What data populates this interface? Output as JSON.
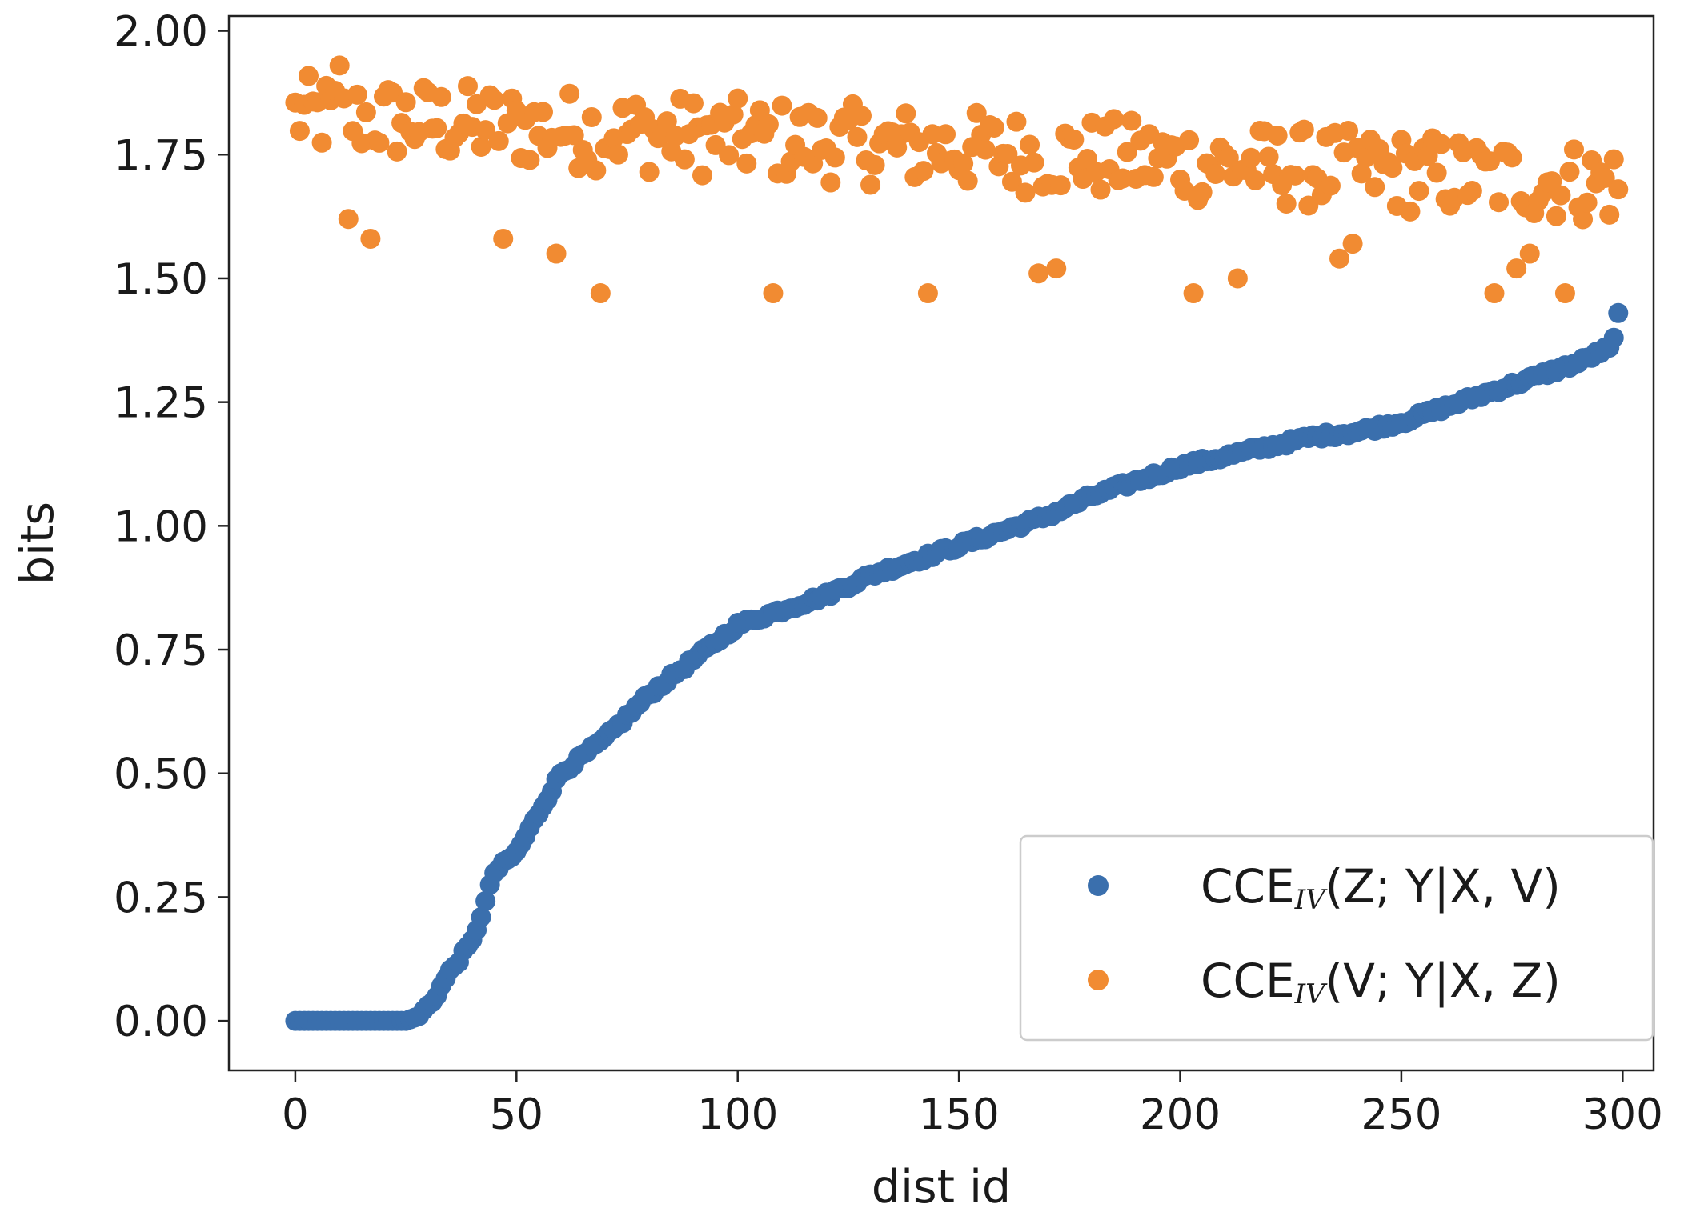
{
  "chart_data": {
    "type": "scatter",
    "title": "",
    "xlabel": "dist id",
    "ylabel": "bits",
    "xlim": [
      -15,
      307
    ],
    "ylim": [
      -0.1,
      2.03
    ],
    "grid": false,
    "legend_position": "bottom-right",
    "xticks": [
      0,
      50,
      100,
      150,
      200,
      250,
      300
    ],
    "yticks": [
      0.0,
      0.25,
      0.5,
      0.75,
      1.0,
      1.25,
      1.5,
      1.75,
      2.0
    ],
    "xtick_labels": [
      "0",
      "50",
      "100",
      "150",
      "200",
      "250",
      "300"
    ],
    "ytick_labels": [
      "0.00",
      "0.25",
      "0.50",
      "0.75",
      "1.00",
      "1.25",
      "1.50",
      "1.75",
      "2.00"
    ],
    "series": [
      {
        "name": "CCE_IV(Z;Y|X,V)",
        "legend_main": "CCE",
        "legend_sub": "IV",
        "legend_rest": "(Z; Y|X, V)",
        "color": "#3a6fad",
        "curve_description": "sorted ascending; 0 to ~dist 27, rises through ~0.3 at 45, 0.8 at 100, 1.0 at 170, 1.2 at 250, up to 1.43 at 299",
        "knots_x": [
          0,
          25,
          28,
          31,
          35,
          40,
          43,
          45,
          50,
          55,
          60,
          70,
          80,
          90,
          100,
          110,
          120,
          130,
          140,
          150,
          160,
          170,
          180,
          190,
          200,
          210,
          220,
          230,
          240,
          250,
          260,
          270,
          280,
          290,
          297,
          298,
          299
        ],
        "knots_y": [
          0.0,
          0.0,
          0.01,
          0.04,
          0.1,
          0.16,
          0.24,
          0.3,
          0.34,
          0.42,
          0.5,
          0.57,
          0.66,
          0.73,
          0.8,
          0.83,
          0.86,
          0.9,
          0.93,
          0.96,
          0.99,
          1.02,
          1.06,
          1.09,
          1.12,
          1.14,
          1.16,
          1.18,
          1.19,
          1.21,
          1.24,
          1.27,
          1.3,
          1.33,
          1.36,
          1.38,
          1.43
        ]
      },
      {
        "name": "CCE_IV(V;Y|X,Z)",
        "legend_main": "CCE",
        "legend_sub": "IV",
        "legend_rest": "(V; Y|X, Z)",
        "color": "#f18b32",
        "curve_description": "noisy scatter between ~1.46 and ~1.94, mean drifting from ~1.83 at dist 0 to ~1.69 at dist 299",
        "x_min": 0,
        "x_max": 299,
        "mean_start": 1.83,
        "mean_end": 1.69,
        "spread": 0.09,
        "outliers_x": [
          10,
          12,
          17,
          47,
          59,
          69,
          108,
          143,
          168,
          172,
          203,
          213,
          236,
          239,
          271,
          276,
          279,
          287
        ],
        "outliers_y": [
          1.93,
          1.62,
          1.58,
          1.58,
          1.55,
          1.47,
          1.47,
          1.47,
          1.51,
          1.52,
          1.47,
          1.5,
          1.54,
          1.57,
          1.47,
          1.52,
          1.55,
          1.47
        ]
      }
    ]
  }
}
